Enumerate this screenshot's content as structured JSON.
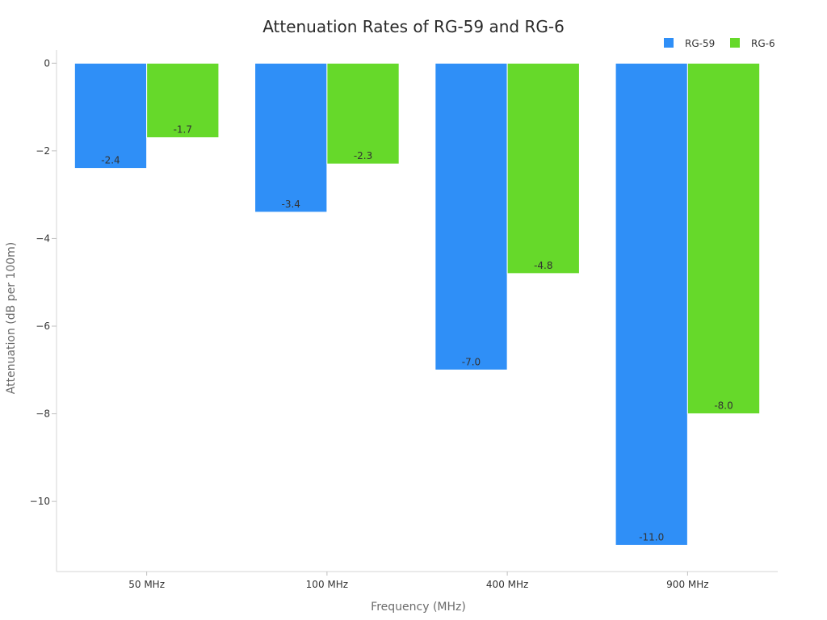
{
  "chart_data": {
    "type": "bar",
    "title": "Attenuation Rates of RG-59 and RG-6",
    "xlabel": "Frequency (MHz)",
    "ylabel": "Attenuation (dB per 100m)",
    "categories": [
      "50 MHz",
      "100 MHz",
      "400 MHz",
      "900 MHz"
    ],
    "series": [
      {
        "name": "RG-59",
        "color": "#2f8ff7",
        "values": [
          -2.4,
          -3.4,
          -7.0,
          -11.0
        ],
        "labels": [
          "-2.4",
          "-3.4",
          "-7.0",
          "-11.0"
        ]
      },
      {
        "name": "RG-6",
        "color": "#66d92a",
        "values": [
          -1.7,
          -2.3,
          -4.8,
          -8.0
        ],
        "labels": [
          "-1.7",
          "-2.3",
          "-4.8",
          "-8.0"
        ]
      }
    ],
    "ylim": [
      -11.6,
      0.3
    ],
    "yticks": [
      0,
      -2,
      -4,
      -6,
      -8,
      -10
    ],
    "ytick_labels": [
      "0",
      "−2",
      "−4",
      "−6",
      "−8",
      "−10"
    ],
    "grid": false,
    "legend_position": "top-right"
  }
}
